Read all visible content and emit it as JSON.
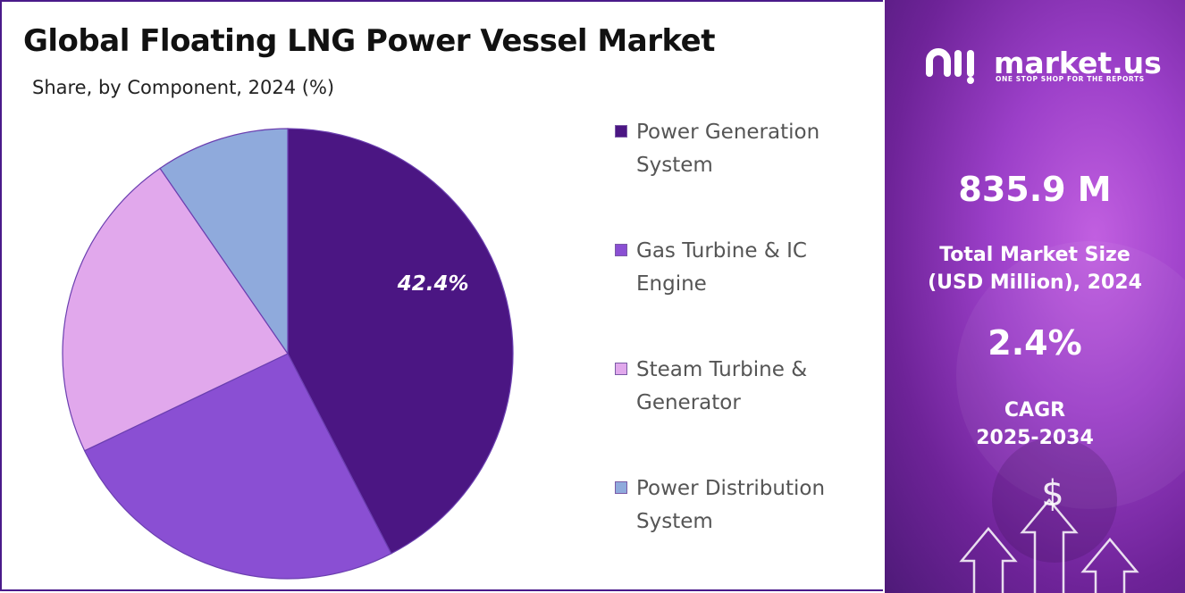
{
  "header": {
    "title": "Global Floating LNG Power Vessel Market",
    "subtitle": "Share, by Component, 2024 (%)"
  },
  "chart_data": {
    "type": "pie",
    "categories": [
      "Power Generation System",
      "Gas Turbine & IC Engine",
      "Steam Turbine & Generator",
      "Power Distribution System"
    ],
    "values": [
      42.4,
      25.5,
      22.5,
      9.6
    ],
    "data_labels": [
      "42.4%",
      "",
      "",
      ""
    ],
    "colors": [
      "#4b1683",
      "#8a4fd3",
      "#e1a8ec",
      "#8faadc"
    ],
    "legend_position": "right"
  },
  "legend": {
    "items": [
      {
        "label": "Power Generation System"
      },
      {
        "label": "Gas Turbine & IC Engine"
      },
      {
        "label": "Steam Turbine & Generator"
      },
      {
        "label": "Power Distribution System"
      }
    ]
  },
  "sidebar": {
    "brand_name": "market.us",
    "brand_tagline": "ONE STOP SHOP FOR THE REPORTS",
    "market_size_value": "835.9 M",
    "market_size_label_line1": "Total Market Size",
    "market_size_label_line2": "(USD Million), 2024",
    "cagr_value": "2.4%",
    "cagr_label_line1": "CAGR",
    "cagr_label_line2": "2025-2034",
    "currency_symbol": "$",
    "icons": [
      "market-us-logo-icon",
      "dollar-icon",
      "arrow-up-icon"
    ]
  }
}
